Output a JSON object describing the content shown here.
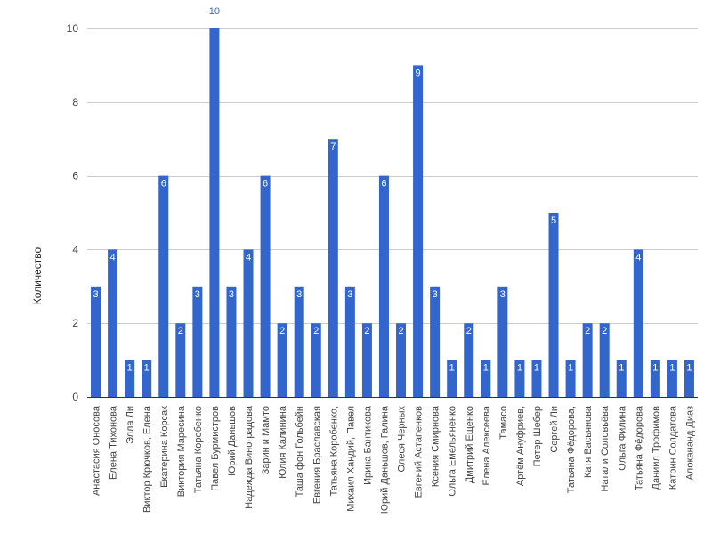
{
  "chart_data": {
    "type": "bar",
    "ylabel": "Количество",
    "xlabel": "",
    "ylim": [
      0,
      10
    ],
    "yticks": [
      0,
      2,
      4,
      6,
      8,
      10
    ],
    "grid": true,
    "bar_color": "#3366cc",
    "categories": [
      "Анастасия Оносова",
      "Елена Тихонова",
      "Элла Ли",
      "Виктор Крючков, Елена",
      "Екатерина Корсак",
      "Виктория Маресина",
      "Татьяна Коробенко",
      "Павел Бурмистров",
      "Юрий Даньшов",
      "Надежда Виноградова",
      "Зарин и Мамто",
      "Юлия Калинина",
      "Таша фон Гольбейн",
      "Евгения Браславская",
      "Татьяна Коробенко,",
      "Михаил Хандий, Павел",
      "Ирина Бантикова",
      "Юрий Даньшов, Галина",
      "Олеся Черных",
      "Евгений Астапенков",
      "Ксения Смирнова",
      "Ольга Емельяненко",
      "Дмитрий Ещенко",
      "Елена Алексеева",
      "Тамасо",
      "Артём Ануфриев,",
      "Петер Шебер",
      "Сергей Ли",
      "Татьяна Фёдорова,",
      "Катя Васьянова",
      "Натали Соловьёва",
      "Ольга Филина",
      "Татьяна Фёдорова",
      "Даниил Трофимов",
      "Катрин Солдатова",
      "Алокананд Диаз"
    ],
    "values": [
      3,
      4,
      1,
      1,
      6,
      2,
      3,
      10,
      3,
      4,
      6,
      2,
      3,
      2,
      7,
      3,
      2,
      6,
      2,
      9,
      3,
      1,
      2,
      1,
      3,
      1,
      1,
      5,
      1,
      2,
      2,
      1,
      4,
      1,
      1,
      1
    ]
  }
}
